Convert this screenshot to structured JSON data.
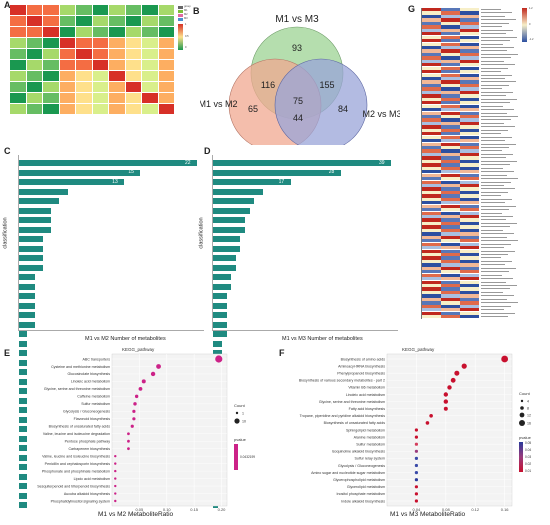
{
  "panels": {
    "A": "A",
    "B": "B",
    "C": "C",
    "D": "D",
    "E": "E",
    "F": "F",
    "G": "G"
  },
  "heatmap_a": {
    "legend_labels": [
      "group",
      "M1",
      "M2",
      "M3"
    ],
    "scale_ticks": [
      "1",
      "0.5",
      "0"
    ],
    "colors": {
      "high": "#d73027",
      "mid": "#fee08b",
      "low": "#1a9850"
    }
  },
  "venn": {
    "labels": {
      "left_top": "M1 vs M3",
      "left": "M1 vs M2",
      "right": "M2 vs M3"
    },
    "counts": {
      "top_only": "93",
      "left_only": "65",
      "right_only": "84",
      "top_left": "116",
      "top_right": "155",
      "left_right": "44",
      "center": "75"
    },
    "colors": {
      "top": "#a8d8a0",
      "left": "#f0a890",
      "right": "#9aa4d8"
    }
  },
  "bar_c": {
    "xlabel": "M1 vs M2 Number of metabolites",
    "ylabel": "classification",
    "top_values": [
      "22",
      "15",
      "13"
    ],
    "bar_color": "#1f8a80"
  },
  "bar_d": {
    "xlabel": "M1 vs M3 Number of metabolites",
    "ylabel": "classification",
    "top_values": [
      "39",
      "28",
      "17"
    ],
    "bar_color": "#1f8a80"
  },
  "dot_e": {
    "plot_title": "KEGG_pathway",
    "xlabel": "M1 vs M2 MetaboliteRatio",
    "pathways": [
      "ABC transporters",
      "Cysteine and methionine metabolism",
      "Glucosinolate biosynthesis",
      "Linoleic acid metabolism",
      "Glycine, serine and threonine metabolism",
      "Caffeine metabolism",
      "Sulfur metabolism",
      "Glycolysis / Gluconeogenesis",
      "Flavonoid biosynthesis",
      "Biosynthesis of unsaturated fatty acids",
      "Valine, leucine and isoleucine degradation",
      "Pentose phosphate pathway",
      "Carbapenem biosynthesis",
      "Valine, leucine and isoleucine biosynthesis",
      "Penicillin and cephalosporin biosynthesis",
      "Phosphonate and phosphinate metabolism",
      "Lipoic acid metabolism",
      "Sesquiterpenoid and triterpenoid biosynthesis",
      "Aucuba alkaloid biosynthesis",
      "Phosphatidylinositol signaling system"
    ],
    "xticks": [
      "0.05",
      "0.10",
      "0.15",
      "0.20"
    ],
    "legend_count_title": "Count",
    "legend_counts": [
      "1",
      "10"
    ],
    "legend_p_title": "pvalue",
    "legend_p_value": "0.0432199",
    "color": "#cc2288"
  },
  "dot_f": {
    "plot_title": "KEGG_pathway",
    "xlabel": "M1 vs M3 MetaboliteRatio",
    "pathways": [
      "Biosynthesis of amino acids",
      "Aminoacyl-tRNA biosynthesis",
      "Phenylpropanoid biosynthesis",
      "Biosynthesis of various secondary metabolites - part 2",
      "Vitamin B6 metabolism",
      "Linoleic acid metabolism",
      "Glycine, serine and threonine metabolism",
      "Fatty acid biosynthesis",
      "Tropane, piperidine and pyridine alkaloid biosynthesis",
      "Biosynthesis of unsaturated fatty acids",
      "Sphingolipid metabolism",
      "Alanine metabolism",
      "Sulfur metabolism",
      "Isoquinoline alkaloid biosynthesis",
      "Sulfur relay system",
      "Glycolysis / Gluconeogenesis",
      "Amino sugar and nucleotide sugar metabolism",
      "Glycerophospholipid metabolism",
      "Glycerolipid metabolism",
      "Inositol phosphate metabolism",
      "Indole alkaloid biosynthesis"
    ],
    "xticks": [
      "0.04",
      "0.08",
      "0.12",
      "0.16"
    ],
    "legend_count_title": "Count",
    "legend_counts": [
      "4",
      "8",
      "12",
      "16"
    ],
    "legend_p_title": "pvalue",
    "legend_p_values": [
      "0.05",
      "0.04",
      "0.03",
      "0.02",
      "0.01"
    ]
  },
  "heatmap_g": {
    "scale_ticks": [
      "1.2",
      "0",
      "-1.2"
    ],
    "colors": {
      "high": "#c0281e",
      "mid": "#f7efc8",
      "low": "#2c4fa0"
    }
  }
}
